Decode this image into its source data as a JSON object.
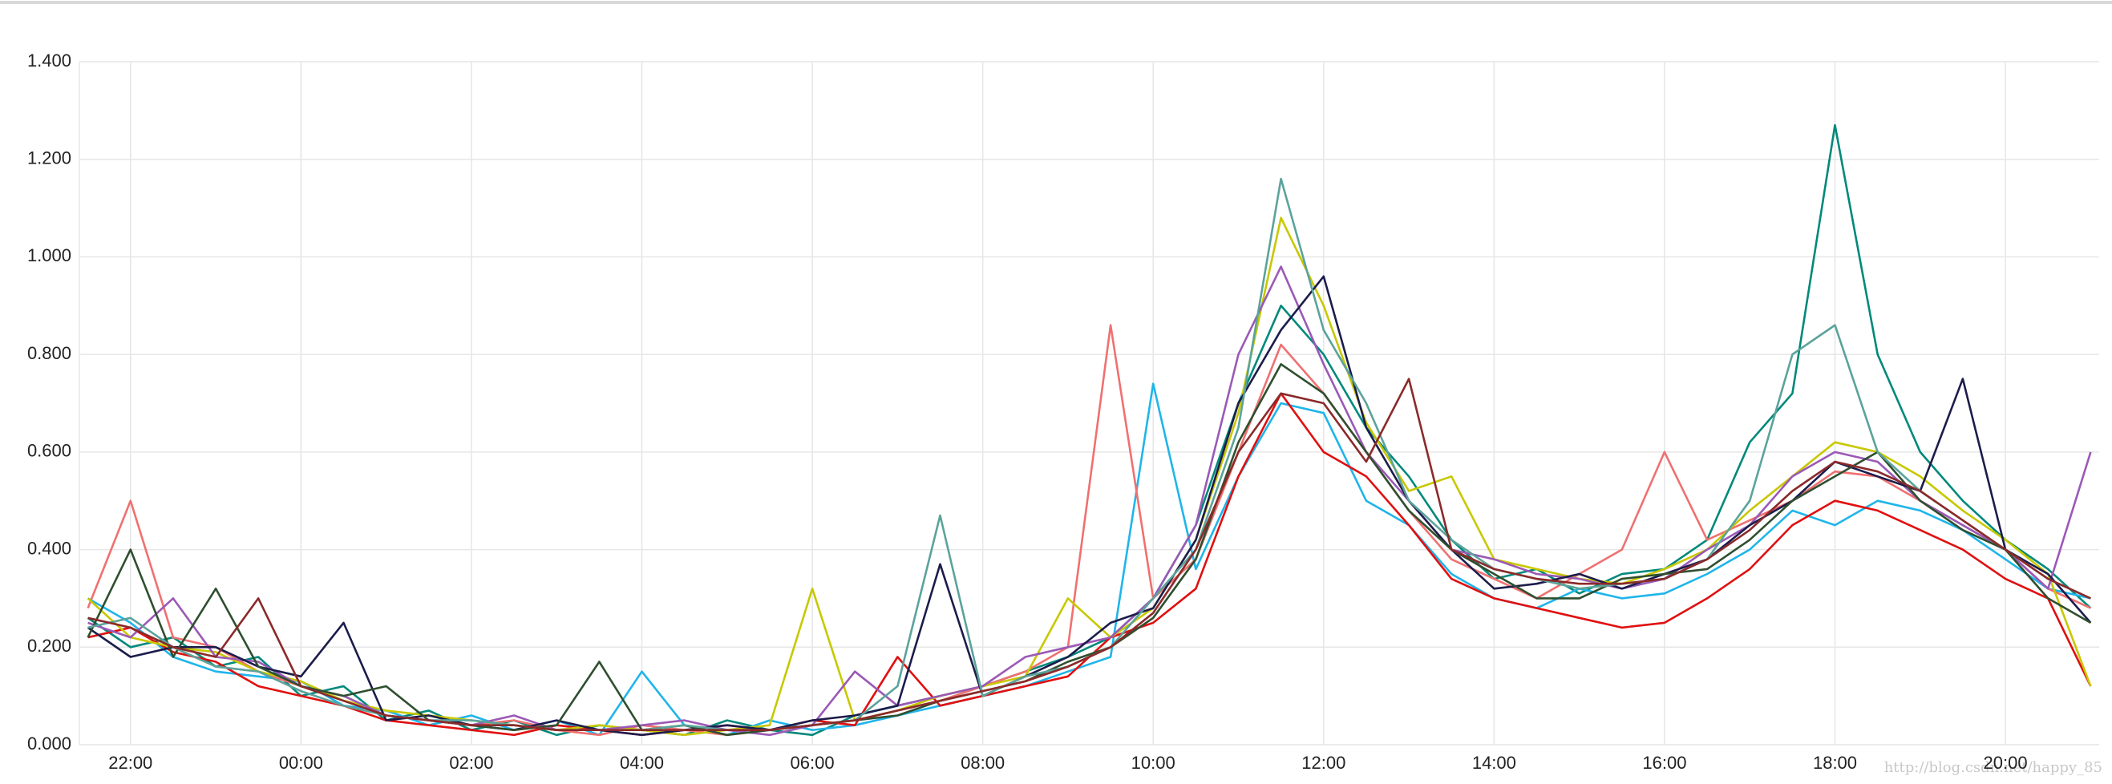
{
  "chart_data": {
    "type": "line",
    "x": [
      "21:30",
      "22:00",
      "22:30",
      "23:00",
      "23:30",
      "00:00",
      "00:30",
      "01:00",
      "01:30",
      "02:00",
      "02:30",
      "03:00",
      "03:30",
      "04:00",
      "04:30",
      "05:00",
      "05:30",
      "06:00",
      "06:30",
      "07:00",
      "07:30",
      "08:00",
      "08:30",
      "09:00",
      "09:30",
      "10:00",
      "10:30",
      "11:00",
      "11:30",
      "12:00",
      "12:30",
      "13:00",
      "13:30",
      "14:00",
      "14:30",
      "15:00",
      "15:30",
      "16:00",
      "16:30",
      "17:00",
      "17:30",
      "18:00",
      "18:30",
      "19:00",
      "19:30",
      "20:00",
      "20:30",
      "21:00"
    ],
    "xticks": [
      "22:00",
      "00:00",
      "02:00",
      "04:00",
      "06:00",
      "08:00",
      "10:00",
      "12:00",
      "14:00",
      "16:00",
      "18:00",
      "20:00"
    ],
    "ylim": [
      0,
      1.4
    ],
    "yticks": [
      {
        "value": 0,
        "label": "0.000"
      },
      {
        "value": 0.2,
        "label": "0.200"
      },
      {
        "value": 0.4,
        "label": "0.400"
      },
      {
        "value": 0.6,
        "label": "0.600"
      },
      {
        "value": 0.8,
        "label": "0.800"
      },
      {
        "value": 1.0,
        "label": "1.000"
      },
      {
        "value": 1.2,
        "label": "1.200"
      },
      {
        "value": 1.4,
        "label": "1.400"
      }
    ],
    "grid": true,
    "watermark": "http://blog.csdn.net/happy_85",
    "series": [
      {
        "color": "#00897b",
        "values": [
          0.26,
          0.2,
          0.22,
          0.16,
          0.18,
          0.1,
          0.12,
          0.05,
          0.07,
          0.03,
          0.05,
          0.02,
          0.04,
          0.03,
          0.02,
          0.05,
          0.03,
          0.02,
          0.06,
          0.08,
          0.1,
          0.12,
          0.15,
          0.18,
          0.22,
          0.3,
          0.45,
          0.7,
          0.9,
          0.8,
          0.65,
          0.55,
          0.42,
          0.34,
          0.36,
          0.31,
          0.35,
          0.36,
          0.42,
          0.62,
          0.72,
          1.27,
          0.8,
          0.6,
          0.5,
          0.42,
          0.36,
          0.28
        ]
      },
      {
        "color": "#1fb5ea",
        "values": [
          0.3,
          0.25,
          0.18,
          0.15,
          0.14,
          0.13,
          0.08,
          0.07,
          0.04,
          0.06,
          0.03,
          0.05,
          0.02,
          0.15,
          0.04,
          0.02,
          0.05,
          0.03,
          0.04,
          0.06,
          0.08,
          0.1,
          0.12,
          0.15,
          0.18,
          0.74,
          0.36,
          0.55,
          0.7,
          0.68,
          0.5,
          0.45,
          0.35,
          0.3,
          0.28,
          0.32,
          0.3,
          0.31,
          0.35,
          0.4,
          0.48,
          0.45,
          0.5,
          0.48,
          0.44,
          0.38,
          0.32,
          0.3
        ]
      },
      {
        "color": "#e01010",
        "values": [
          0.22,
          0.24,
          0.19,
          0.17,
          0.12,
          0.1,
          0.08,
          0.05,
          0.04,
          0.03,
          0.02,
          0.04,
          0.03,
          0.02,
          0.03,
          0.04,
          0.03,
          0.05,
          0.04,
          0.18,
          0.08,
          0.1,
          0.12,
          0.14,
          0.22,
          0.25,
          0.32,
          0.55,
          0.72,
          0.6,
          0.55,
          0.45,
          0.34,
          0.3,
          0.28,
          0.26,
          0.24,
          0.25,
          0.3,
          0.36,
          0.45,
          0.5,
          0.48,
          0.44,
          0.4,
          0.34,
          0.3,
          0.12
        ]
      },
      {
        "color": "#f07070",
        "values": [
          0.28,
          0.5,
          0.22,
          0.2,
          0.15,
          0.12,
          0.1,
          0.06,
          0.05,
          0.04,
          0.05,
          0.03,
          0.02,
          0.04,
          0.03,
          0.02,
          0.03,
          0.04,
          0.05,
          0.07,
          0.09,
          0.12,
          0.15,
          0.2,
          0.86,
          0.3,
          0.38,
          0.6,
          0.82,
          0.72,
          0.6,
          0.48,
          0.38,
          0.34,
          0.3,
          0.35,
          0.4,
          0.6,
          0.42,
          0.46,
          0.5,
          0.56,
          0.55,
          0.5,
          0.45,
          0.4,
          0.32,
          0.28
        ]
      },
      {
        "color": "#c8c800",
        "values": [
          0.3,
          0.22,
          0.2,
          0.19,
          0.15,
          0.13,
          0.09,
          0.07,
          0.06,
          0.05,
          0.04,
          0.03,
          0.04,
          0.03,
          0.02,
          0.03,
          0.04,
          0.32,
          0.05,
          0.07,
          0.1,
          0.12,
          0.14,
          0.3,
          0.22,
          0.28,
          0.42,
          0.68,
          1.08,
          0.9,
          0.66,
          0.52,
          0.55,
          0.38,
          0.36,
          0.34,
          0.33,
          0.36,
          0.4,
          0.48,
          0.55,
          0.62,
          0.6,
          0.55,
          0.48,
          0.42,
          0.35,
          0.12
        ]
      },
      {
        "color": "#9b59b6",
        "values": [
          0.25,
          0.22,
          0.3,
          0.18,
          0.17,
          0.12,
          0.1,
          0.06,
          0.05,
          0.04,
          0.06,
          0.03,
          0.03,
          0.04,
          0.05,
          0.03,
          0.02,
          0.04,
          0.15,
          0.08,
          0.1,
          0.12,
          0.18,
          0.2,
          0.22,
          0.3,
          0.45,
          0.8,
          0.98,
          0.78,
          0.6,
          0.5,
          0.4,
          0.38,
          0.35,
          0.34,
          0.32,
          0.34,
          0.4,
          0.45,
          0.55,
          0.6,
          0.58,
          0.5,
          0.45,
          0.4,
          0.32,
          0.6
        ]
      },
      {
        "color": "#1c1c4c",
        "values": [
          0.24,
          0.18,
          0.2,
          0.2,
          0.16,
          0.14,
          0.25,
          0.05,
          0.06,
          0.04,
          0.03,
          0.05,
          0.03,
          0.02,
          0.03,
          0.04,
          0.03,
          0.05,
          0.06,
          0.08,
          0.37,
          0.1,
          0.14,
          0.18,
          0.25,
          0.28,
          0.42,
          0.7,
          0.85,
          0.96,
          0.65,
          0.5,
          0.4,
          0.32,
          0.33,
          0.35,
          0.32,
          0.35,
          0.38,
          0.45,
          0.5,
          0.58,
          0.55,
          0.52,
          0.75,
          0.4,
          0.35,
          0.25
        ]
      },
      {
        "color": "#2f4f2f",
        "values": [
          0.22,
          0.4,
          0.18,
          0.32,
          0.16,
          0.12,
          0.1,
          0.12,
          0.05,
          0.04,
          0.03,
          0.04,
          0.17,
          0.03,
          0.04,
          0.02,
          0.03,
          0.04,
          0.05,
          0.06,
          0.09,
          0.11,
          0.13,
          0.17,
          0.2,
          0.26,
          0.38,
          0.62,
          0.78,
          0.72,
          0.6,
          0.48,
          0.4,
          0.35,
          0.3,
          0.3,
          0.34,
          0.35,
          0.36,
          0.42,
          0.5,
          0.55,
          0.6,
          0.5,
          0.44,
          0.4,
          0.3,
          0.25
        ]
      },
      {
        "color": "#5ba39b",
        "values": [
          0.24,
          0.26,
          0.2,
          0.16,
          0.15,
          0.11,
          0.08,
          0.06,
          0.05,
          0.05,
          0.04,
          0.03,
          0.03,
          0.03,
          0.04,
          0.03,
          0.03,
          0.04,
          0.05,
          0.12,
          0.47,
          0.1,
          0.14,
          0.16,
          0.2,
          0.3,
          0.4,
          0.65,
          1.16,
          0.85,
          0.7,
          0.5,
          0.42,
          0.36,
          0.34,
          0.32,
          0.33,
          0.34,
          0.38,
          0.5,
          0.8,
          0.86,
          0.6,
          0.52,
          0.46,
          0.4,
          0.34,
          0.3
        ]
      },
      {
        "color": "#8b2a2a",
        "values": [
          0.26,
          0.24,
          0.2,
          0.18,
          0.3,
          0.12,
          0.09,
          0.06,
          0.05,
          0.04,
          0.04,
          0.03,
          0.03,
          0.03,
          0.03,
          0.03,
          0.03,
          0.04,
          0.05,
          0.07,
          0.09,
          0.11,
          0.13,
          0.16,
          0.2,
          0.27,
          0.4,
          0.6,
          0.72,
          0.7,
          0.58,
          0.75,
          0.4,
          0.36,
          0.34,
          0.33,
          0.33,
          0.34,
          0.38,
          0.44,
          0.52,
          0.58,
          0.56,
          0.52,
          0.46,
          0.4,
          0.34,
          0.3
        ]
      }
    ]
  }
}
